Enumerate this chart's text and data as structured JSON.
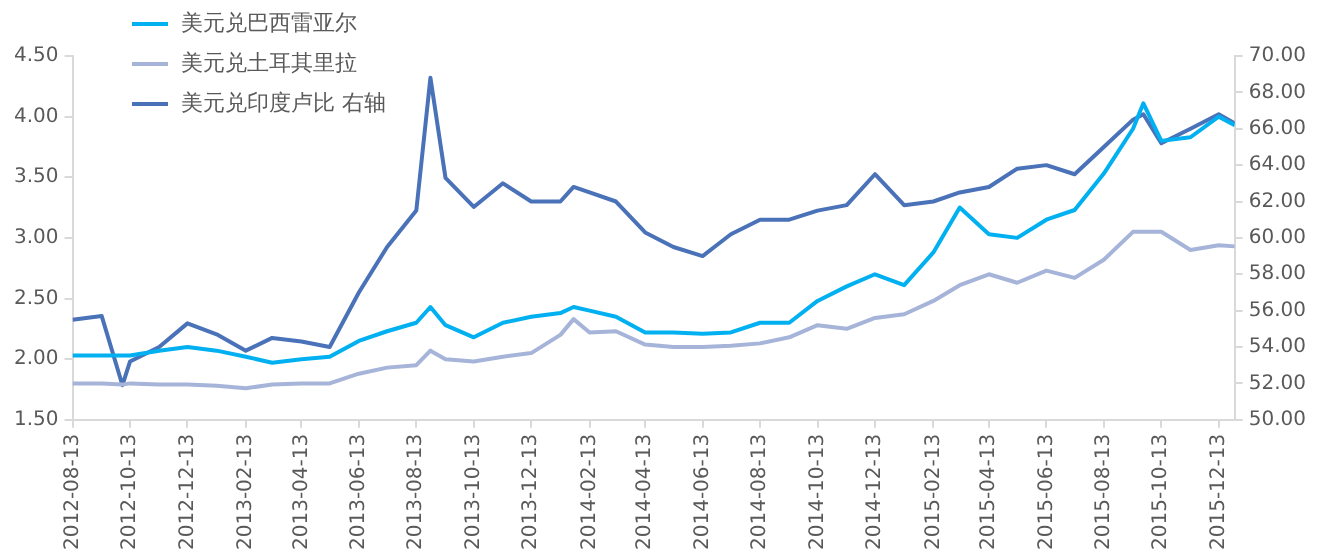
{
  "chart_data": {
    "type": "line",
    "legend": "top left",
    "marker": "none",
    "line_style": "solid",
    "grid": false,
    "x": [
      "2012-08-13",
      "2012-09-13",
      "2012-10-05",
      "2012-10-13",
      "2012-11-13",
      "2012-12-13",
      "2013-01-13",
      "2013-02-13",
      "2013-03-13",
      "2013-04-13",
      "2013-05-13",
      "2013-06-13",
      "2013-07-13",
      "2013-08-13",
      "2013-08-28",
      "2013-09-13",
      "2013-10-13",
      "2013-11-13",
      "2013-12-13",
      "2014-01-13",
      "2014-01-27",
      "2014-02-13",
      "2014-03-13",
      "2014-04-13",
      "2014-05-13",
      "2014-06-13",
      "2014-07-13",
      "2014-08-13",
      "2014-09-13",
      "2014-10-13",
      "2014-11-13",
      "2014-12-13",
      "2015-01-13",
      "2015-02-13",
      "2015-03-13",
      "2015-04-13",
      "2015-05-13",
      "2015-06-13",
      "2015-07-13",
      "2015-08-13",
      "2015-09-13",
      "2015-09-24",
      "2015-10-13",
      "2015-11-13",
      "2015-12-13",
      "2015-12-30"
    ],
    "series": [
      {
        "name": "美元兑巴西雷亚尔",
        "color": "#00b0f0",
        "values": [
          2.03,
          2.03,
          2.03,
          2.03,
          2.07,
          2.1,
          2.07,
          2.02,
          1.97,
          2.0,
          2.02,
          2.15,
          2.23,
          2.3,
          2.43,
          2.28,
          2.18,
          2.3,
          2.35,
          2.38,
          2.43,
          2.4,
          2.35,
          2.22,
          2.22,
          2.21,
          2.22,
          2.3,
          2.3,
          2.48,
          2.6,
          2.7,
          2.61,
          2.88,
          3.25,
          3.03,
          3.0,
          3.15,
          3.23,
          3.53,
          3.9,
          4.11,
          3.8,
          3.83,
          4.0,
          3.93
        ]
      },
      {
        "name": "美元兑土耳其里拉",
        "color": "#a5b4d8",
        "values": [
          1.8,
          1.8,
          1.79,
          1.8,
          1.79,
          1.79,
          1.78,
          1.76,
          1.79,
          1.8,
          1.8,
          1.88,
          1.93,
          1.95,
          2.07,
          2.0,
          1.98,
          2.02,
          2.05,
          2.2,
          2.33,
          2.22,
          2.23,
          2.12,
          2.1,
          2.1,
          2.11,
          2.13,
          2.18,
          2.28,
          2.25,
          2.34,
          2.37,
          2.48,
          2.61,
          2.7,
          2.63,
          2.73,
          2.67,
          2.82,
          3.05,
          3.05,
          3.05,
          2.9,
          2.94,
          2.93
        ]
      },
      {
        "name": "美元兑印度卢比 右轴",
        "color": "#4a72b8",
        "axis": "y2",
        "values": [
          55.5,
          55.7,
          51.9,
          53.2,
          54.0,
          55.3,
          54.7,
          53.8,
          54.5,
          54.3,
          54.0,
          57.0,
          59.5,
          61.5,
          68.8,
          63.3,
          61.7,
          63.0,
          62.0,
          62.0,
          62.8,
          62.5,
          62.0,
          60.3,
          59.5,
          59.0,
          60.2,
          61.0,
          61.0,
          61.5,
          61.8,
          63.5,
          61.8,
          62.0,
          62.5,
          62.8,
          63.8,
          64.0,
          63.5,
          65.0,
          66.5,
          66.8,
          65.2,
          66.0,
          66.8,
          66.3
        ]
      }
    ],
    "xlim": [
      "2012-08-13",
      "2015-12-30"
    ],
    "xticks": [
      "2012-08-13",
      "2012-10-13",
      "2012-12-13",
      "2013-02-13",
      "2013-04-13",
      "2013-06-13",
      "2013-08-13",
      "2013-10-13",
      "2013-12-13",
      "2014-02-13",
      "2014-04-13",
      "2014-06-13",
      "2014-08-13",
      "2014-10-13",
      "2014-12-13",
      "2015-02-13",
      "2015-04-13",
      "2015-06-13",
      "2015-08-13",
      "2015-10-13",
      "2015-12-13"
    ],
    "ylim": [
      1.5,
      4.5
    ],
    "yticks": [
      {
        "value": 1.5,
        "label": "1.50"
      },
      {
        "value": 2,
        "label": "2.00"
      },
      {
        "value": 2.5,
        "label": "2.50"
      },
      {
        "value": 3,
        "label": "3.00"
      },
      {
        "value": 3.5,
        "label": "3.50"
      },
      {
        "value": 4,
        "label": "4.00"
      },
      {
        "value": 4.5,
        "label": "4.50"
      }
    ],
    "y2lim": [
      50,
      70
    ],
    "y2ticks": [
      {
        "value": 50,
        "label": "50.00"
      },
      {
        "value": 52,
        "label": "52.00"
      },
      {
        "value": 54,
        "label": "54.00"
      },
      {
        "value": 56,
        "label": "56.00"
      },
      {
        "value": 58,
        "label": "58.00"
      },
      {
        "value": 60,
        "label": "60.00"
      },
      {
        "value": 62,
        "label": "62.00"
      },
      {
        "value": 64,
        "label": "64.00"
      },
      {
        "value": 66,
        "label": "66.00"
      },
      {
        "value": 68,
        "label": "68.00"
      },
      {
        "value": 70,
        "label": "70.00"
      }
    ]
  }
}
